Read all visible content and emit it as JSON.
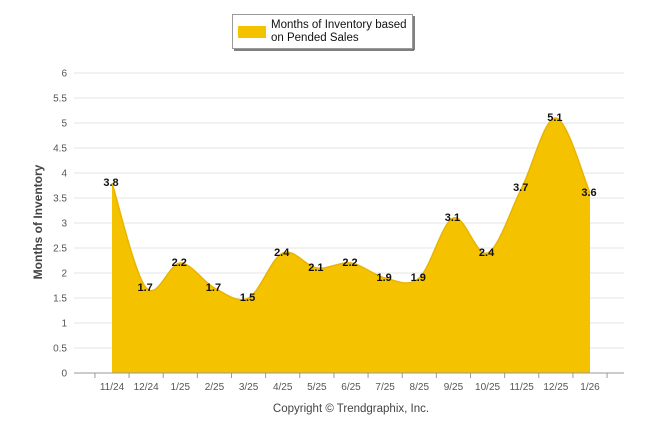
{
  "chart_data": {
    "type": "area",
    "title": "",
    "xlabel": "",
    "ylabel": "Months of Inventory",
    "ylim": [
      0,
      6
    ],
    "yticks": [
      "0",
      "0.5",
      "1",
      "1.5",
      "2",
      "2.5",
      "3",
      "3.5",
      "4",
      "4.5",
      "5",
      "5.5",
      "6"
    ],
    "categories": [
      "11/24",
      "12/24",
      "1/25",
      "2/25",
      "3/25",
      "4/25",
      "5/25",
      "6/25",
      "7/25",
      "8/25",
      "9/25",
      "10/25",
      "11/25",
      "12/25",
      "1/26"
    ],
    "series": [
      {
        "name": "Months of Inventory based on Pended Sales",
        "legend_lines": [
          "Months of Inventory based",
          "on Pended Sales"
        ],
        "color": "#f5c200",
        "values": [
          3.8,
          1.7,
          2.2,
          1.7,
          1.5,
          2.4,
          2.1,
          2.2,
          1.9,
          1.9,
          3.1,
          2.4,
          3.7,
          5.1,
          3.6
        ],
        "labels": [
          "3.8",
          "1.7",
          "2.2",
          "1.7",
          "1.5",
          "2.4",
          "2.1",
          "2.2",
          "1.9",
          "1.9",
          "3.1",
          "2.4",
          "3.7",
          "5.1",
          "3.6"
        ]
      }
    ],
    "grid": true,
    "legend_position": "top-center",
    "credit": "Copyright © Trendgraphix, Inc."
  }
}
